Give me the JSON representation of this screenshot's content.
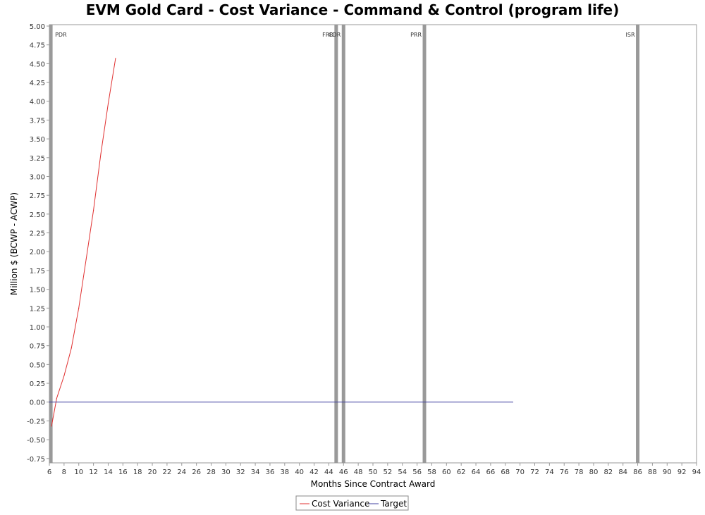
{
  "chart_data": {
    "type": "line",
    "title": "EVM Gold Card - Cost Variance - Command & Control (program life)",
    "xlabel": "Months Since Contract Award",
    "ylabel": "Million $ (BCWP - ACWP)",
    "xlim": [
      6,
      94
    ],
    "ylim": [
      -0.78,
      5.0
    ],
    "x_ticks": [
      6,
      8,
      10,
      12,
      14,
      16,
      18,
      20,
      22,
      24,
      26,
      28,
      30,
      32,
      34,
      36,
      38,
      40,
      42,
      44,
      46,
      48,
      50,
      52,
      54,
      56,
      58,
      60,
      62,
      64,
      66,
      68,
      70,
      72,
      74,
      76,
      78,
      80,
      82,
      84,
      86,
      88,
      90,
      92,
      94
    ],
    "y_ticks": [
      5.0,
      4.75,
      4.5,
      4.25,
      4.0,
      3.75,
      3.5,
      3.25,
      3.0,
      2.75,
      2.5,
      2.25,
      2.0,
      1.75,
      1.5,
      1.25,
      1.0,
      0.75,
      0.5,
      0.25,
      0.0,
      -0.25,
      -0.5,
      -0.75
    ],
    "y_tick_labels": [
      "5.00",
      "4.75",
      "4.50",
      "4.25",
      "4.00",
      "3.75",
      "3.50",
      "3.25",
      "3.00",
      "2.75",
      "2.50",
      "2.25",
      "2.00",
      "1.75",
      "1.50",
      "1.25",
      "1.00",
      "0.75",
      "0.50",
      "0.25",
      "0.00",
      "-0.25",
      "-0.50",
      "-0.75"
    ],
    "grid": false,
    "legend_position": "bottom-center",
    "series": [
      {
        "name": "Cost Variance",
        "color": "#e03030",
        "x": [
          6.3,
          7,
          8,
          9,
          10,
          11,
          12,
          13,
          14,
          15
        ],
        "y": [
          -0.32,
          0.05,
          0.35,
          0.72,
          1.25,
          1.9,
          2.55,
          3.3,
          3.97,
          4.57
        ]
      },
      {
        "name": "Target",
        "color": "#4040a0",
        "x": [
          6,
          69
        ],
        "y": [
          0.0,
          0.0
        ]
      }
    ],
    "milestones": [
      {
        "label": "PDR",
        "x": 6.2
      },
      {
        "label": "FRR",
        "x": 45
      },
      {
        "label": "CDR",
        "x": 46
      },
      {
        "label": "PRR",
        "x": 57
      },
      {
        "label": "ISR",
        "x": 86
      }
    ],
    "milestone_color": "#999999"
  }
}
